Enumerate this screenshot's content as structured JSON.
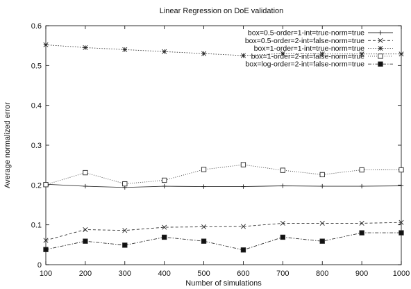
{
  "chart_data": {
    "type": "line",
    "title": "Linear Regression on DoE validation",
    "xlabel": "Number of simulations",
    "ylabel": "Average normalized error",
    "x": [
      100,
      200,
      300,
      400,
      500,
      600,
      700,
      800,
      900,
      1000
    ],
    "xlim": [
      100,
      1000
    ],
    "ylim": [
      0,
      0.6
    ],
    "xticks": [
      "100",
      "200",
      "300",
      "400",
      "500",
      "600",
      "700",
      "800",
      "900",
      "1000"
    ],
    "yticks": [
      "0",
      "0.1",
      "0.2",
      "0.3",
      "0.4",
      "0.5",
      "0.6"
    ],
    "grid": false,
    "legend_position": "top-right",
    "series": [
      {
        "name": "box=0.5-order=1-int=true-norm=true",
        "marker": "plus",
        "dash": "solid",
        "values": [
          0.202,
          0.197,
          0.194,
          0.197,
          0.196,
          0.196,
          0.198,
          0.197,
          0.197,
          0.198
        ]
      },
      {
        "name": "box=0.5-order=2-int=false-norm=true",
        "marker": "x",
        "dash": "dashed",
        "values": [
          0.061,
          0.088,
          0.086,
          0.094,
          0.095,
          0.096,
          0.104,
          0.104,
          0.104,
          0.106
        ]
      },
      {
        "name": "box=1-order=1-int=true-norm=true",
        "marker": "star",
        "dash": "dotted",
        "values": [
          0.552,
          0.545,
          0.54,
          0.535,
          0.53,
          0.525,
          0.53,
          0.529,
          0.529,
          0.529
        ]
      },
      {
        "name": "box=1-order=2-int=false-norm=true",
        "marker": "square-open",
        "dash": "dotted-fine",
        "values": [
          0.201,
          0.231,
          0.203,
          0.212,
          0.239,
          0.251,
          0.237,
          0.226,
          0.238,
          0.238
        ]
      },
      {
        "name": "box=log-order=2-int=false-norm=true",
        "marker": "square-filled",
        "dash": "dashdot",
        "values": [
          0.038,
          0.059,
          0.049,
          0.069,
          0.059,
          0.037,
          0.069,
          0.059,
          0.08,
          0.08
        ]
      }
    ]
  }
}
